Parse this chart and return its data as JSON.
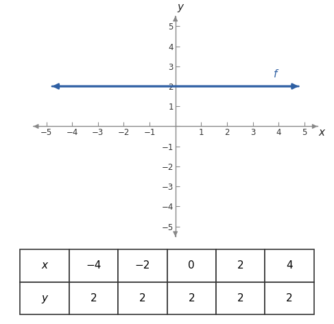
{
  "xlim": [
    -5.5,
    5.5
  ],
  "ylim": [
    -5.5,
    5.5
  ],
  "xticks": [
    -5,
    -4,
    -3,
    -2,
    -1,
    0,
    1,
    2,
    3,
    4,
    5
  ],
  "yticks": [
    -5,
    -4,
    -3,
    -2,
    -1,
    0,
    1,
    2,
    3,
    4,
    5
  ],
  "line_y": 2,
  "line_x_start": -4.85,
  "line_x_end": 4.85,
  "line_color": "#2E5FA3",
  "line_label": "f",
  "label_color": "#2E5FA3",
  "axis_color": "#888888",
  "tick_color": "#888888",
  "xlabel": "x",
  "ylabel": "y",
  "table_x_values": [
    "x",
    "−4",
    "−2",
    "0",
    "2",
    "4"
  ],
  "table_y_values": [
    "y",
    "2",
    "2",
    "2",
    "2",
    "2"
  ],
  "bg_color": "#ffffff",
  "line_width": 2.0,
  "figwidth": 4.87,
  "figheight": 4.73
}
